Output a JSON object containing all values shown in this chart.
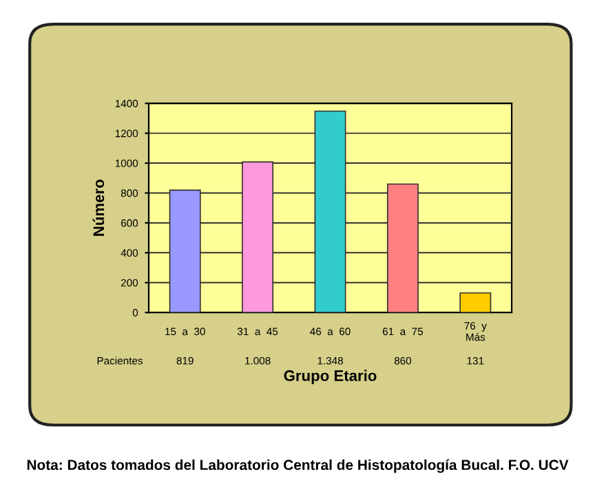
{
  "chart_data": {
    "type": "bar",
    "categories": [
      "15  a  30",
      "31  a  45",
      "46  a  60",
      "61  a  75",
      "76  y\nMás"
    ],
    "series": [
      {
        "name": "Pacientes",
        "values": [
          819,
          1008,
          1348,
          860,
          131
        ],
        "value_labels": [
          "819",
          "1.008",
          "1.348",
          "860",
          "131"
        ],
        "colors": [
          "#9999ff",
          "#ff99dd",
          "#33cccc",
          "#ff8080",
          "#ffcc00"
        ]
      }
    ],
    "ylabel": "Número",
    "xlabel": "Grupo Etario",
    "ylim": [
      0,
      1400
    ],
    "yticks": [
      0,
      200,
      400,
      600,
      800,
      1000,
      1200,
      1400
    ],
    "grid": "y",
    "annotations": [
      "Nota: Datos tomados del Laboratorio Central de Histopatología Bucal. F.O. UCV"
    ]
  }
}
